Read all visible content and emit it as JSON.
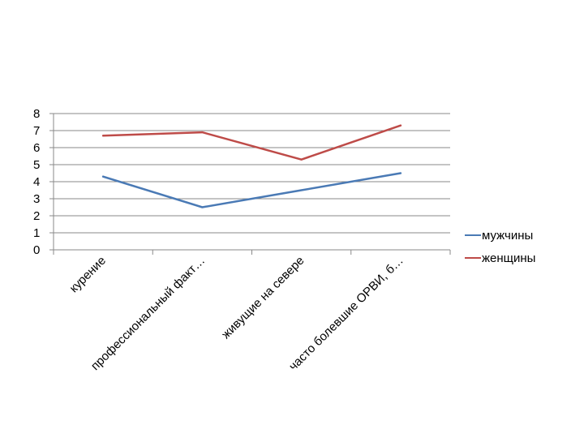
{
  "chart_data": {
    "type": "line",
    "categories": [
      "курение",
      "профессиональный факт…",
      "живущие на севере",
      "часто болевшие ОРВИ, б…"
    ],
    "series": [
      {
        "name": "мужчины",
        "values": [
          4.3,
          2.5,
          3.5,
          4.5
        ],
        "color": "#4a7ab5"
      },
      {
        "name": "женщины",
        "values": [
          6.7,
          6.9,
          5.3,
          7.3
        ],
        "color": "#be4b48"
      }
    ],
    "ylim": [
      0,
      8
    ],
    "yticks": [
      "0",
      "1",
      "2",
      "3",
      "4",
      "5",
      "6",
      "7",
      "8"
    ],
    "grid": true,
    "legend_position": "right"
  }
}
